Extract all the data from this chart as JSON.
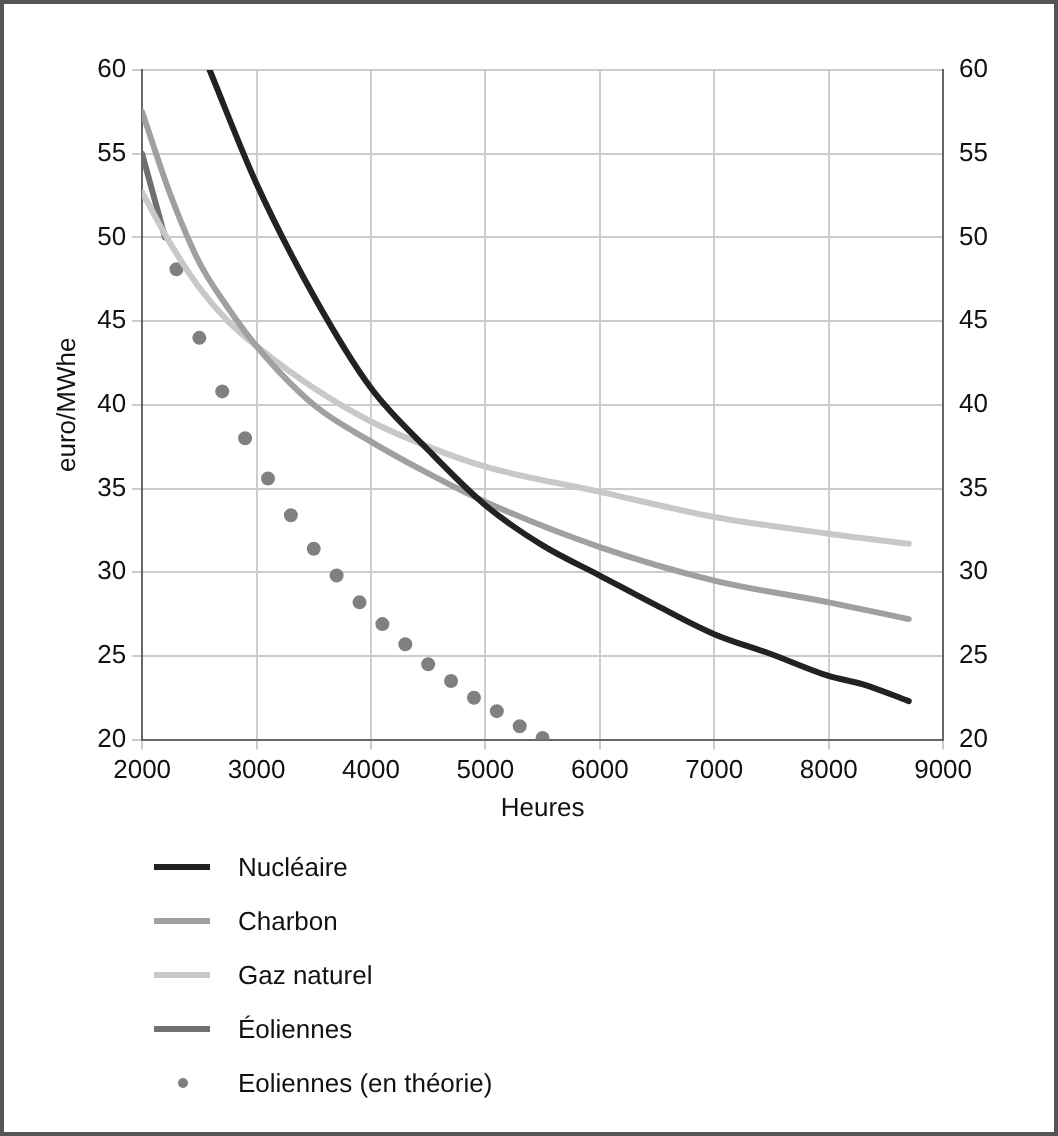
{
  "chart_data": {
    "type": "line",
    "xlabel": "Heures",
    "ylabel": "euro/MWhe",
    "xlim": [
      2000,
      9000
    ],
    "xticks": [
      2000,
      3000,
      4000,
      5000,
      6000,
      7000,
      8000,
      9000
    ],
    "ylim": [
      20,
      60
    ],
    "yticks": [
      20,
      25,
      30,
      35,
      40,
      45,
      50,
      55,
      60
    ],
    "y2lim": [
      20,
      60
    ],
    "y2ticks": [
      20,
      25,
      30,
      35,
      40,
      45,
      50,
      55,
      60
    ],
    "grid": true,
    "legend": "bottom",
    "series": [
      {
        "name": "Nucléaire",
        "color": "#222222",
        "x": [
          2590,
          3000,
          3500,
          4000,
          4500,
          5000,
          5500,
          6000,
          6500,
          7000,
          7500,
          8000,
          8300,
          8700
        ],
        "values": [
          60,
          53.2,
          46.5,
          41,
          37.3,
          34,
          31.6,
          29.8,
          28,
          26.3,
          25.1,
          23.8,
          23.3,
          22.3
        ]
      },
      {
        "name": "Charbon",
        "color": "#a0a0a0",
        "x": [
          2000,
          2250,
          2500,
          2750,
          3000,
          3500,
          4000,
          4500,
          5000,
          6000,
          7000,
          8000,
          8700
        ],
        "values": [
          57.5,
          52.5,
          48.5,
          45.8,
          43.5,
          40,
          37.8,
          35.9,
          34.2,
          31.5,
          29.5,
          28.2,
          27.2
        ]
      },
      {
        "name": "Gaz naturel",
        "color": "#c8c8c8",
        "x": [
          2000,
          2250,
          2500,
          2750,
          3000,
          3500,
          4000,
          4500,
          5000,
          6000,
          7000,
          8000,
          8700
        ],
        "values": [
          52.7,
          49.6,
          47,
          45,
          43.5,
          41,
          39,
          37.5,
          36.3,
          34.8,
          33.3,
          32.3,
          31.7
        ]
      },
      {
        "name": "Éoliennes",
        "color": "#707070",
        "x": [
          2000,
          2200
        ],
        "values": [
          55,
          50
        ]
      },
      {
        "name": "Eoliennes (en théorie)",
        "type": "scatter",
        "marker": "circle",
        "color": "#808080",
        "x": [
          2300,
          2500,
          2700,
          2900,
          3100,
          3300,
          3500,
          3700,
          3900,
          4100,
          4300,
          4500,
          4700,
          4900,
          5100,
          5300,
          5500
        ],
        "values": [
          48.1,
          44,
          40.8,
          38,
          35.6,
          33.4,
          31.4,
          29.8,
          28.2,
          26.9,
          25.7,
          24.5,
          23.5,
          22.5,
          21.7,
          20.8,
          20.1
        ]
      }
    ]
  }
}
